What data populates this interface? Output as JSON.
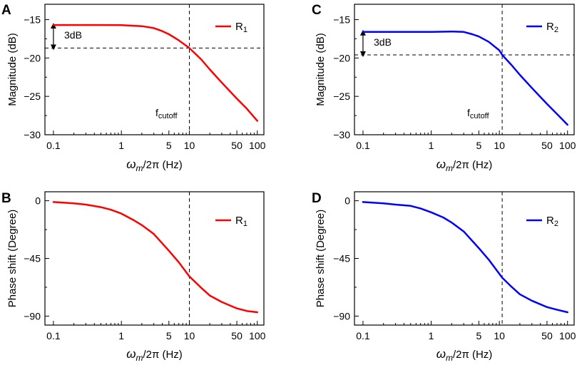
{
  "chart_data": [
    {
      "panel": "A",
      "type": "line",
      "xscale": "log",
      "xlim": [
        0.075,
        125
      ],
      "ylim": [
        -30,
        -13
      ],
      "xticks": [
        0.1,
        1,
        5,
        10,
        50,
        100
      ],
      "xtick_labels": [
        "0.1",
        "1",
        "5",
        "10",
        "50",
        "100"
      ],
      "yticks": [
        -15,
        -20,
        -25,
        -30
      ],
      "ytick_labels": [
        "-15",
        "-20",
        "-25",
        "-30"
      ],
      "xlabel_main": "ω",
      "xlabel_sub": "m",
      "xlabel_rest": "/2π (Hz)",
      "ylabel": "Magnitude  (dB)",
      "series": [
        {
          "name": "R",
          "subscript": "1",
          "color": "#ff0000",
          "x": [
            0.1,
            0.2,
            0.5,
            1,
            2,
            3,
            4,
            5,
            7,
            10,
            15,
            20,
            30,
            50,
            70,
            100
          ],
          "y": [
            -15.7,
            -15.7,
            -15.7,
            -15.72,
            -15.85,
            -16.1,
            -16.5,
            -16.9,
            -17.7,
            -18.7,
            -20.2,
            -21.5,
            -23.2,
            -25.3,
            -26.6,
            -28.2
          ]
        }
      ],
      "hline": -18.7,
      "vline": 10,
      "arrow_from": -15.7,
      "arrow_to": -18.7,
      "annotation": "3dB",
      "cutoff_label": "f",
      "cutoff_sub": "cutoff"
    },
    {
      "panel": "B",
      "type": "line",
      "xscale": "log",
      "xlim": [
        0.075,
        125
      ],
      "ylim": [
        -97,
        7
      ],
      "xticks": [
        0.1,
        1,
        5,
        10,
        50,
        100
      ],
      "xtick_labels": [
        "0.1",
        "1",
        "5",
        "10",
        "50",
        "100"
      ],
      "yticks": [
        0,
        -45,
        -90
      ],
      "ytick_labels": [
        "0",
        "-45",
        "-90"
      ],
      "xlabel_main": "ω",
      "xlabel_sub": "m",
      "xlabel_rest": "/2π (Hz)",
      "ylabel": "Phase shift  (Degree)",
      "series": [
        {
          "name": "R",
          "subscript": "1",
          "color": "#ff0000",
          "x": [
            0.1,
            0.2,
            0.3,
            0.5,
            0.7,
            1,
            1.5,
            2,
            3,
            5,
            7,
            10,
            15,
            20,
            30,
            50,
            70,
            100
          ],
          "y": [
            -1,
            -2,
            -3,
            -5,
            -7,
            -10,
            -15,
            -19,
            -26,
            -39,
            -48,
            -59,
            -68,
            -74,
            -79,
            -84,
            -86,
            -87
          ]
        }
      ],
      "vline": 10
    },
    {
      "panel": "C",
      "type": "line",
      "xscale": "log",
      "xlim": [
        0.075,
        125
      ],
      "ylim": [
        -30,
        -13
      ],
      "xticks": [
        0.1,
        1,
        5,
        10,
        50,
        100
      ],
      "xtick_labels": [
        "0.1",
        "1",
        "5",
        "10",
        "50",
        "100"
      ],
      "yticks": [
        -15,
        -20,
        -25,
        -30
      ],
      "ytick_labels": [
        "-15",
        "-20",
        "-25",
        "-30"
      ],
      "xlabel_main": "ω",
      "xlabel_sub": "m",
      "xlabel_rest": "/2π (Hz)",
      "ylabel": "Magnitude  (dB)",
      "series": [
        {
          "name": "R",
          "subscript": "2",
          "color": "#0000ff",
          "x": [
            0.1,
            0.2,
            0.5,
            1,
            2,
            3,
            4,
            5,
            7,
            10,
            11,
            15,
            20,
            30,
            50,
            70,
            100
          ],
          "y": [
            -16.6,
            -16.6,
            -16.6,
            -16.6,
            -16.55,
            -16.6,
            -16.9,
            -17.2,
            -17.9,
            -19.0,
            -19.6,
            -20.9,
            -22.2,
            -23.9,
            -26.0,
            -27.3,
            -28.7
          ]
        }
      ],
      "hline": -19.6,
      "vline": 11,
      "arrow_from": -16.6,
      "arrow_to": -19.6,
      "annotation": "3dB",
      "cutoff_label": "f",
      "cutoff_sub": "cutoff"
    },
    {
      "panel": "D",
      "type": "line",
      "xscale": "log",
      "xlim": [
        0.075,
        125
      ],
      "ylim": [
        -97,
        7
      ],
      "xticks": [
        0.1,
        1,
        5,
        10,
        50,
        100
      ],
      "xtick_labels": [
        "0.1",
        "1",
        "5",
        "10",
        "50",
        "100"
      ],
      "yticks": [
        0,
        -45,
        -90
      ],
      "ytick_labels": [
        "0",
        "-45",
        "-90"
      ],
      "xlabel_main": "ω",
      "xlabel_sub": "m",
      "xlabel_rest": "/2π (Hz)",
      "ylabel": "Phase shift  (Degree)",
      "series": [
        {
          "name": "R",
          "subscript": "2",
          "color": "#0000ff",
          "x": [
            0.1,
            0.2,
            0.3,
            0.5,
            0.7,
            1,
            1.5,
            2,
            3,
            5,
            7,
            10,
            11,
            15,
            20,
            30,
            50,
            70,
            100
          ],
          "y": [
            -1,
            -2,
            -3,
            -4,
            -6,
            -9,
            -13,
            -17,
            -24,
            -37,
            -46,
            -57,
            -60,
            -67,
            -73,
            -78,
            -83,
            -85,
            -87
          ]
        }
      ],
      "vline": 11
    }
  ]
}
